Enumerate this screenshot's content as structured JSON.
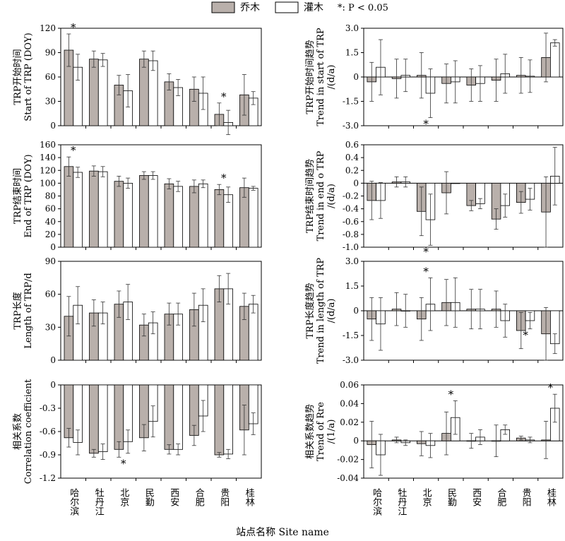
{
  "legend": {
    "tree_label": "乔木",
    "shrub_label": "灌木",
    "sig_label": "*: P < 0.05"
  },
  "colors": {
    "tree": "#b9b0ab",
    "shrub": "#ffffff",
    "stroke": "#000000"
  },
  "x_axis_title": "站点名称 Site name",
  "categories": [
    "哈尔滨",
    "牡丹江",
    "北京",
    "民勤",
    "西安",
    "合肥",
    "贵阳",
    "桂林"
  ],
  "chart_data": [
    {
      "type": "bar",
      "title": "",
      "ylabel": [
        "TRP开始时间",
        "Start of TRP (DOY)"
      ],
      "ylim": [
        0,
        120
      ],
      "yticks": [
        0,
        30,
        60,
        90,
        120
      ],
      "series": [
        {
          "name": "乔木",
          "values": [
            93,
            82,
            50,
            82,
            54,
            45,
            14,
            38
          ],
          "err": [
            20,
            10,
            12,
            10,
            10,
            15,
            14,
            25
          ]
        },
        {
          "name": "灌木",
          "values": [
            72,
            81,
            43,
            80,
            47,
            40,
            4,
            34
          ],
          "err": [
            16,
            8,
            20,
            12,
            10,
            20,
            15,
            8
          ]
        }
      ],
      "significance": [
        {
          "category": 0,
          "series": 0,
          "mark": "*"
        },
        {
          "category": 6,
          "series": 0,
          "mark": "*"
        }
      ]
    },
    {
      "type": "bar",
      "title": "",
      "ylabel": [
        "TRP开始时间趋势",
        "Trend in start of TRP",
        "/(d/a)"
      ],
      "ylim": [
        -3.0,
        3.0
      ],
      "yticks": [
        -3.0,
        -1.5,
        0,
        1.5,
        3.0
      ],
      "series": [
        {
          "name": "乔木",
          "values": [
            -0.3,
            -0.1,
            0.1,
            -0.4,
            -0.5,
            -0.2,
            0.1,
            1.2
          ],
          "err": [
            1.2,
            1.2,
            1.4,
            1.2,
            1.0,
            1.3,
            1.1,
            1.5
          ]
        },
        {
          "name": "灌木",
          "values": [
            0.6,
            0.1,
            -1.0,
            -0.3,
            -0.4,
            0.2,
            0.05,
            2.1
          ],
          "err": [
            1.7,
            1.0,
            1.5,
            1.3,
            1.1,
            1.2,
            1.0,
            0.2
          ]
        }
      ],
      "significance": [
        {
          "category": 2,
          "series": 1,
          "mark": "*"
        }
      ]
    },
    {
      "type": "bar",
      "title": "",
      "ylabel": [
        "TRP结束时间",
        "End of TRP (DOY)"
      ],
      "ylim": [
        0,
        160
      ],
      "yticks": [
        0,
        20,
        40,
        60,
        80,
        100,
        120,
        140,
        160
      ],
      "series": [
        {
          "name": "乔木",
          "values": [
            126,
            119,
            103,
            112,
            99,
            95,
            90,
            93
          ],
          "err": [
            15,
            8,
            8,
            6,
            8,
            10,
            8,
            15
          ]
        },
        {
          "name": "灌木",
          "values": [
            117,
            118,
            100,
            112,
            95,
            99,
            82,
            92
          ],
          "err": [
            8,
            8,
            8,
            6,
            8,
            6,
            12,
            3
          ]
        }
      ],
      "significance": [
        {
          "category": 0,
          "series": 0,
          "mark": "*"
        },
        {
          "category": 6,
          "series": 0,
          "mark": "*"
        }
      ]
    },
    {
      "type": "bar",
      "title": "",
      "ylabel": [
        "TRP结束时间趋势",
        "Trend in end o TRP",
        "/(d/a)"
      ],
      "ylim": [
        -1.0,
        0.6
      ],
      "yticks": [
        -1.0,
        -0.8,
        -0.6,
        -0.4,
        -0.2,
        0,
        0.2,
        0.4,
        0.6
      ],
      "series": [
        {
          "name": "乔木",
          "values": [
            -0.27,
            0.02,
            -0.44,
            -0.15,
            -0.35,
            -0.56,
            -0.3,
            -0.45
          ],
          "err": [
            0.3,
            0.08,
            0.38,
            0.33,
            0.08,
            0.16,
            0.17,
            0.55
          ]
        },
        {
          "name": "灌木",
          "values": [
            -0.27,
            0.02,
            -0.57,
            0.0,
            -0.32,
            -0.35,
            -0.25,
            0.11
          ],
          "err": [
            0.28,
            0.08,
            0.4,
            0.0,
            0.08,
            0.18,
            0.17,
            0.45
          ]
        }
      ],
      "significance": [
        {
          "category": 2,
          "series": 1,
          "mark": "*"
        }
      ]
    },
    {
      "type": "bar",
      "title": "",
      "ylabel": [
        "TRP长度",
        "Length of TRP/d"
      ],
      "ylim": [
        0,
        90
      ],
      "yticks": [
        0,
        30,
        60,
        90
      ],
      "series": [
        {
          "name": "乔木",
          "values": [
            40,
            43,
            51,
            32,
            42,
            46,
            65,
            49
          ],
          "err": [
            18,
            12,
            12,
            10,
            10,
            15,
            12,
            12
          ]
        },
        {
          "name": "灌木",
          "values": [
            50,
            43,
            53,
            34,
            42,
            50,
            65,
            51
          ],
          "err": [
            17,
            10,
            16,
            10,
            10,
            15,
            14,
            8
          ]
        }
      ],
      "significance": []
    },
    {
      "type": "bar",
      "title": "",
      "ylabel": [
        "TRP长度趋势",
        "Trend in length of TRP",
        "/(d/a)"
      ],
      "ylim": [
        -3.0,
        3.0
      ],
      "yticks": [
        -3.0,
        -1.5,
        0,
        1.5,
        3.0
      ],
      "series": [
        {
          "name": "乔木",
          "values": [
            -0.5,
            0.1,
            -0.5,
            0.5,
            0.1,
            0.1,
            -1.2,
            -1.4
          ],
          "err": [
            1.3,
            1.0,
            1.3,
            1.4,
            1.2,
            1.1,
            1.1,
            1.6
          ]
        },
        {
          "name": "灌木",
          "values": [
            -0.8,
            0.0,
            0.4,
            0.5,
            0.1,
            -0.6,
            -0.6,
            -2.0
          ],
          "err": [
            1.6,
            1.0,
            1.6,
            1.5,
            1.2,
            1.0,
            0.5,
            0.6
          ]
        }
      ],
      "significance": [
        {
          "category": 2,
          "series": 1,
          "mark": "*"
        },
        {
          "category": 6,
          "series": 1,
          "mark": "*"
        }
      ]
    },
    {
      "type": "bar",
      "title": "",
      "ylabel": [
        "相关系数",
        "Correlation coefficient"
      ],
      "ylim": [
        -1.2,
        0
      ],
      "yticks": [
        -1.2,
        -0.9,
        -0.6,
        -0.3,
        0
      ],
      "series": [
        {
          "name": "乔木",
          "values": [
            -0.68,
            -0.88,
            -0.83,
            -0.68,
            -0.83,
            -0.65,
            -0.9,
            -0.58
          ]
        },
        {
          "name": "灌木",
          "values": [
            -0.74,
            -0.86,
            -0.73,
            -0.47,
            -0.83,
            -0.4,
            -0.89,
            -0.5
          ]
        }
      ],
      "errs": [
        [
          0.12,
          0.05,
          0.1,
          0.17,
          0.06,
          0.13,
          0.03,
          0.32
        ],
        [
          0.16,
          0.1,
          0.15,
          0.2,
          0.07,
          0.2,
          0.06,
          0.14
        ]
      ],
      "significance": [
        {
          "category": 2,
          "series": 0,
          "mark": "*"
        }
      ]
    },
    {
      "type": "bar",
      "title": "",
      "ylabel": [
        "相关系数趋势",
        "Trend of Rre",
        "/(1/a)"
      ],
      "ylim": [
        -0.04,
        0.06
      ],
      "yticks": [
        -0.04,
        -0.02,
        0,
        0.02,
        0.04,
        0.06
      ],
      "series": [
        {
          "name": "乔木",
          "values": [
            -0.004,
            0.001,
            -0.003,
            0.008,
            0.0,
            0.0,
            0.003,
            0.001
          ]
        },
        {
          "name": "灌木",
          "values": [
            -0.015,
            -0.002,
            -0.005,
            0.025,
            0.004,
            0.012,
            0.001,
            0.035
          ]
        }
      ],
      "errs": [
        [
          0.025,
          0.003,
          0.013,
          0.023,
          0.008,
          0.017,
          0.002,
          0.02
        ],
        [
          0.022,
          0.003,
          0.013,
          0.018,
          0.008,
          0.005,
          0.003,
          0.015
        ]
      ],
      "significance": [
        {
          "category": 3,
          "series": 1,
          "mark": "*"
        },
        {
          "category": 7,
          "series": 1,
          "mark": "*"
        }
      ]
    }
  ]
}
